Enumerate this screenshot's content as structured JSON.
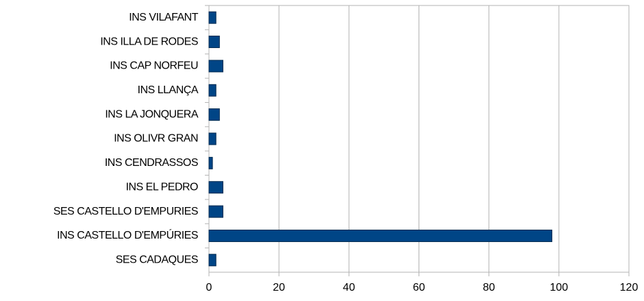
{
  "chart_data": {
    "type": "hbar",
    "categories": [
      "INS VILAFANT",
      "INS ILLA DE RODES",
      "INS CAP NORFEU",
      "INS LLANÇA",
      "INS LA JONQUERA",
      "INS OLIVR GRAN",
      "INS CENDRASSOS",
      "INS EL PEDRO",
      "SES CASTELLO D'EMPURIES",
      "INS CASTELLO D'EMPÚRIES",
      "SES CADAQUES"
    ],
    "values": [
      2,
      3,
      4,
      2,
      3,
      2,
      1,
      4,
      4,
      98,
      2
    ],
    "color": "#004586",
    "xlim": [
      0,
      120
    ],
    "xticks": [
      0,
      20,
      40,
      60,
      80,
      100,
      120
    ],
    "grid": true
  }
}
